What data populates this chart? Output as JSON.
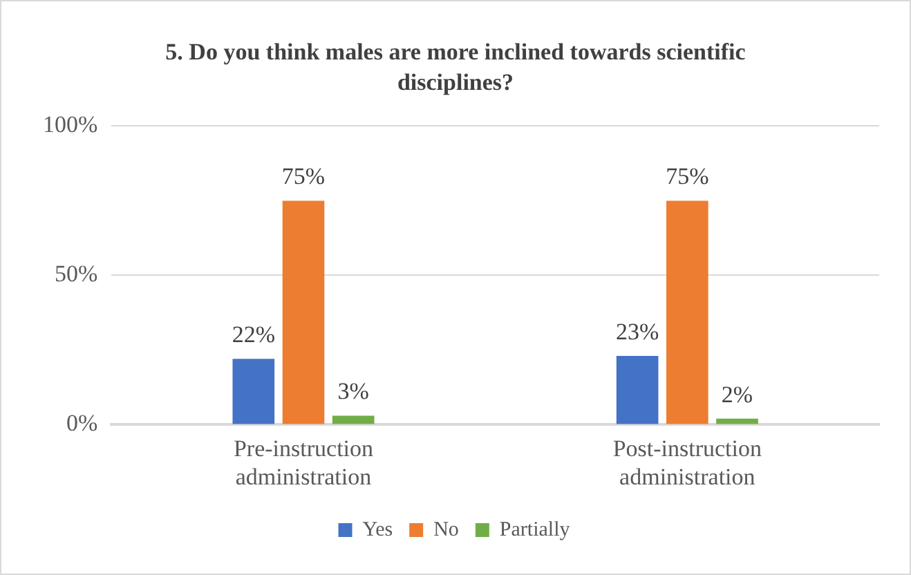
{
  "chart_data": {
    "type": "bar",
    "title": "5. Do you think males are more inclined towards scientific disciplines?",
    "categories": [
      "Pre-instruction administration",
      "Post-instruction administration"
    ],
    "series": [
      {
        "name": "Yes",
        "color": "#4472c4",
        "values": [
          22,
          23
        ],
        "value_labels": [
          "22%",
          "23%"
        ]
      },
      {
        "name": "No",
        "color": "#ed7d31",
        "values": [
          75,
          75
        ],
        "value_labels": [
          "75%",
          "75%"
        ]
      },
      {
        "name": "Partially",
        "color": "#70ad47",
        "values": [
          3,
          2
        ],
        "value_labels": [
          "3%",
          "2%"
        ]
      }
    ],
    "ylim": [
      0,
      100
    ],
    "yticks": [
      {
        "value": 0,
        "label": "0%"
      },
      {
        "value": 50,
        "label": "50%"
      },
      {
        "value": 100,
        "label": "100%"
      }
    ],
    "grid": "y",
    "legend": "bottom"
  }
}
